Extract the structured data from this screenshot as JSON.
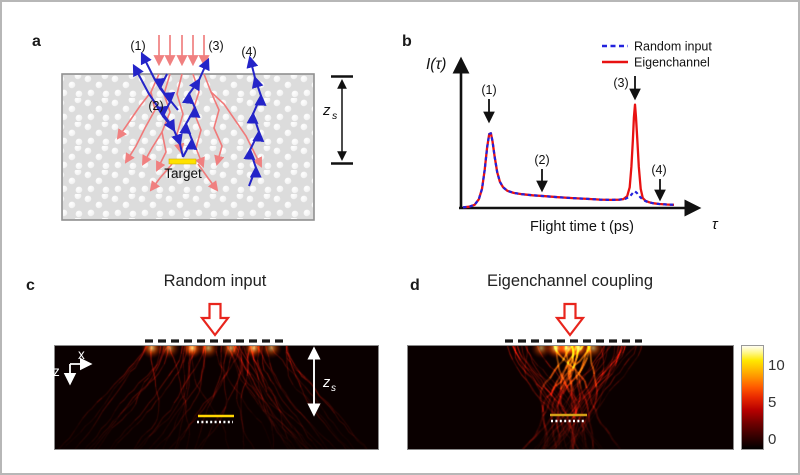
{
  "panel_a": {
    "label": "a",
    "ray_labels": {
      "l1": "(1)",
      "l2": "(2)",
      "l3": "(3)",
      "l4": "(4)"
    },
    "target_label": "Target",
    "depth": {
      "base": "z",
      "sub": "s"
    }
  },
  "panel_b": {
    "label": "b",
    "y_axis_label": "I(τ)",
    "x_axis_label": "Flight time t (ps)",
    "x_end_symbol": "τ",
    "legend": {
      "random": "Random input",
      "eigen": "Eigenchannel"
    },
    "annotations": {
      "a1": "(1)",
      "a2": "(2)",
      "a3": "(3)",
      "a4": "(4)"
    }
  },
  "panel_c": {
    "label": "c",
    "title": "Random input",
    "axis_x": "x",
    "axis_z": "z",
    "depth": {
      "base": "z",
      "sub": "s"
    }
  },
  "panel_d": {
    "label": "d",
    "title": "Eigenchannel coupling"
  },
  "colorbar": {
    "ticks": [
      "10",
      "5",
      "0"
    ],
    "colormap": "hot"
  },
  "colors": {
    "random_series": "#2222dd",
    "eigen_series": "#e81212",
    "incident_ray": "#f08080",
    "ballistic_path": "#2424c8",
    "target_yellow": "#ffe200",
    "hollow_arrow": "#e8251d"
  },
  "chart_data": [
    {
      "type": "line",
      "title": "",
      "xlabel": "Flight time t (ps)",
      "ylabel": "I(τ)",
      "x_range_note": "no numeric ticks shown; x normalized 0-1",
      "y_range_note": "intensity a.u.; y normalized 0-1",
      "grid": false,
      "legend_position": "top-right",
      "series": [
        {
          "name": "Random input",
          "color": "#2222dd",
          "style": "dashed",
          "points": [
            [
              0.0,
              0.004
            ],
            [
              0.03,
              0.008
            ],
            [
              0.055,
              0.02
            ],
            [
              0.075,
              0.055
            ],
            [
              0.09,
              0.12
            ],
            [
              0.103,
              0.24
            ],
            [
              0.114,
              0.38
            ],
            [
              0.124,
              0.465
            ],
            [
              0.132,
              0.47
            ],
            [
              0.14,
              0.42
            ],
            [
              0.15,
              0.32
            ],
            [
              0.162,
              0.225
            ],
            [
              0.175,
              0.165
            ],
            [
              0.19,
              0.13
            ],
            [
              0.21,
              0.108
            ],
            [
              0.24,
              0.095
            ],
            [
              0.28,
              0.087
            ],
            [
              0.33,
              0.08
            ],
            [
              0.39,
              0.074
            ],
            [
              0.45,
              0.068
            ],
            [
              0.52,
              0.062
            ],
            [
              0.59,
              0.057
            ],
            [
              0.65,
              0.053
            ],
            [
              0.7,
              0.051
            ],
            [
              0.74,
              0.052
            ],
            [
              0.77,
              0.058
            ],
            [
              0.79,
              0.072
            ],
            [
              0.805,
              0.095
            ],
            [
              0.815,
              0.105
            ],
            [
              0.825,
              0.093
            ],
            [
              0.84,
              0.068
            ],
            [
              0.855,
              0.05
            ],
            [
              0.875,
              0.038
            ],
            [
              0.9,
              0.03
            ],
            [
              0.93,
              0.025
            ],
            [
              0.965,
              0.022
            ],
            [
              1.0,
              0.02
            ]
          ]
        },
        {
          "name": "Eigenchannel",
          "color": "#e81212",
          "style": "solid",
          "points": [
            [
              0.0,
              0.004
            ],
            [
              0.03,
              0.008
            ],
            [
              0.055,
              0.02
            ],
            [
              0.075,
              0.055
            ],
            [
              0.09,
              0.12
            ],
            [
              0.103,
              0.24
            ],
            [
              0.114,
              0.38
            ],
            [
              0.124,
              0.465
            ],
            [
              0.132,
              0.47
            ],
            [
              0.14,
              0.42
            ],
            [
              0.15,
              0.32
            ],
            [
              0.162,
              0.225
            ],
            [
              0.175,
              0.165
            ],
            [
              0.19,
              0.13
            ],
            [
              0.21,
              0.108
            ],
            [
              0.24,
              0.095
            ],
            [
              0.28,
              0.087
            ],
            [
              0.33,
              0.08
            ],
            [
              0.39,
              0.074
            ],
            [
              0.45,
              0.068
            ],
            [
              0.52,
              0.062
            ],
            [
              0.59,
              0.057
            ],
            [
              0.65,
              0.053
            ],
            [
              0.7,
              0.051
            ],
            [
              0.74,
              0.052
            ],
            [
              0.76,
              0.056
            ],
            [
              0.778,
              0.075
            ],
            [
              0.79,
              0.13
            ],
            [
              0.798,
              0.26
            ],
            [
              0.805,
              0.43
            ],
            [
              0.81,
              0.57
            ],
            [
              0.815,
              0.65
            ],
            [
              0.82,
              0.57
            ],
            [
              0.826,
              0.43
            ],
            [
              0.833,
              0.26
            ],
            [
              0.842,
              0.12
            ],
            [
              0.852,
              0.062
            ],
            [
              0.865,
              0.045
            ],
            [
              0.88,
              0.037
            ],
            [
              0.9,
              0.03
            ],
            [
              0.93,
              0.025
            ],
            [
              0.965,
              0.022
            ],
            [
              1.0,
              0.02
            ]
          ]
        }
      ],
      "annotations": [
        {
          "text": "(1)",
          "x": 0.128,
          "y": 0.47
        },
        {
          "text": "(2)",
          "x": 0.37,
          "y": 0.08
        },
        {
          "text": "(3)",
          "x": 0.815,
          "y": 0.65
        },
        {
          "text": "(4)",
          "x": 0.93,
          "y": 0.03
        }
      ]
    },
    {
      "type": "heatmap",
      "panels": [
        "Random input",
        "Eigenchannel coupling"
      ],
      "description": "time-integrated intensity of light inside scattering medium, filaments from surface toward target depth zs",
      "colormap": "hot",
      "colorbar_ticks": [
        0,
        5,
        10
      ]
    }
  ]
}
